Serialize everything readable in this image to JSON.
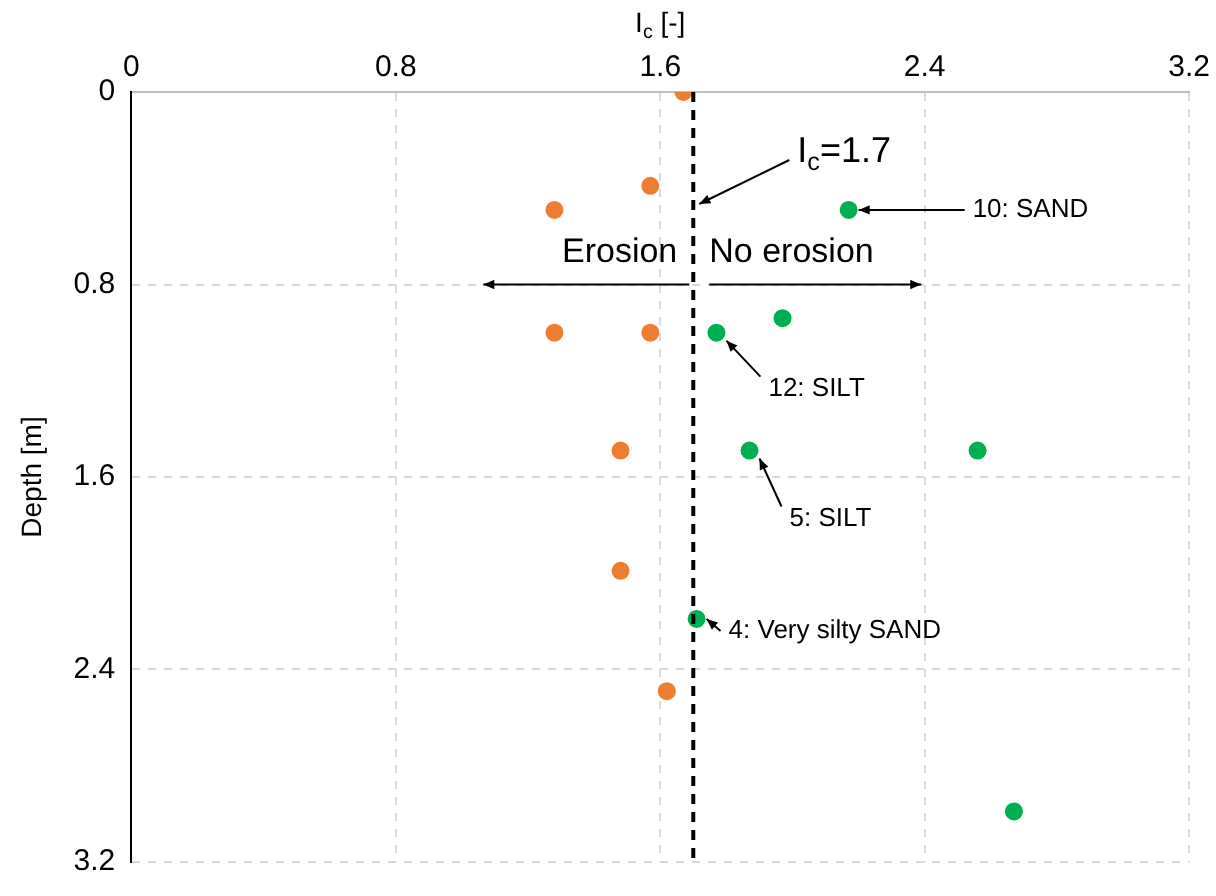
{
  "chart_data": {
    "type": "scatter",
    "xlabel": "I$_{c}$ [-]",
    "ylabel": "Depth [m]",
    "xlim": [
      0,
      3.2
    ],
    "xticks": [
      0,
      0.8,
      1.6,
      2.4,
      3.2
    ],
    "ylim": [
      3.2,
      0
    ],
    "yticks": [
      0,
      0.8,
      1.6,
      2.4,
      3.2
    ],
    "grid": true,
    "legend": false,
    "marker": "circle",
    "series": [
      {
        "color": "#ed7d31",
        "x": [
          1.67,
          1.57,
          1.28,
          1.28,
          1.57,
          1.48,
          1.48,
          1.62
        ],
        "values": [
          0,
          0.39,
          0.49,
          1.0,
          1.0,
          1.49,
          1.99,
          2.49
        ]
      },
      {
        "color": "#00b050",
        "x": [
          2.17,
          1.97,
          1.77,
          1.87,
          2.56,
          1.71,
          2.67
        ],
        "values": [
          0.49,
          0.94,
          1.0,
          1.49,
          1.49,
          2.19,
          2.99
        ]
      }
    ],
    "ref_lines": [
      {
        "axis": "x",
        "value": 1.7,
        "label": "I$_{c}$=1.7",
        "color": "#000000",
        "line_style": "dashed"
      }
    ],
    "annotations": [
      "Erosion",
      "No erosion",
      {
        "text": "10: SAND",
        "x": 2.17,
        "y": 0.49
      },
      {
        "text": "12: SILT",
        "x": 1.77,
        "y": 1.0
      },
      {
        "text": "5: SILT",
        "x": 1.87,
        "y": 1.49
      },
      {
        "text": "4: Very silty SAND",
        "x": 1.71,
        "y": 2.19
      }
    ]
  }
}
